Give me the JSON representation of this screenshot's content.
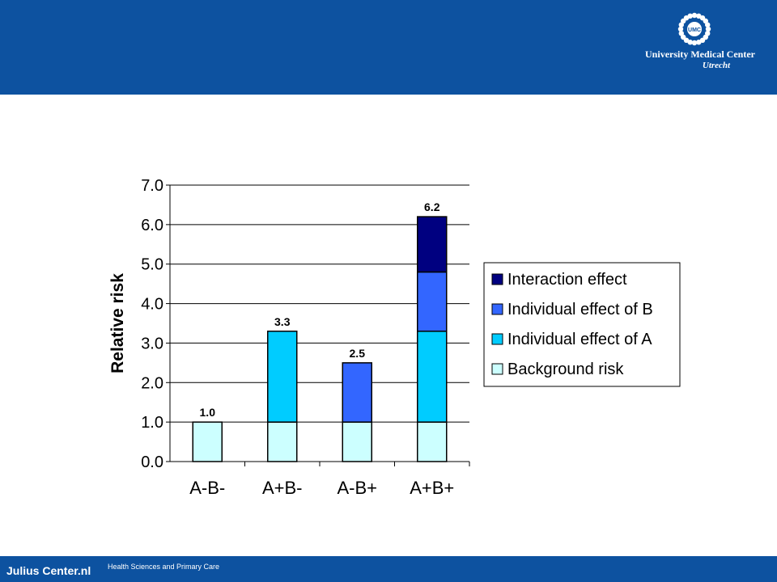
{
  "header": {
    "logo_line1": "University Medical Center",
    "logo_line2": "Utrecht",
    "logo_badge": "UMC"
  },
  "footer": {
    "brand": "Julius Center.nl",
    "subtitle": "Health Sciences and Primary Care"
  },
  "chart_data": {
    "type": "bar",
    "stacked": true,
    "categories": [
      "A-B-",
      "A+B-",
      "A-B+",
      "A+B+"
    ],
    "ylabel": "Relative risk",
    "ylim": [
      0,
      7
    ],
    "yticks": [
      "0.0",
      "1.0",
      "2.0",
      "3.0",
      "4.0",
      "5.0",
      "6.0",
      "7.0"
    ],
    "grid": true,
    "legend_position": "right",
    "series": [
      {
        "name": "Background risk",
        "color": "#ccffff",
        "values": [
          1.0,
          1.0,
          1.0,
          1.0
        ]
      },
      {
        "name": "Individual effect of A",
        "color": "#00ccff",
        "values": [
          0,
          2.3,
          0,
          2.3
        ]
      },
      {
        "name": "Individual effect of B",
        "color": "#3366ff",
        "values": [
          0,
          0,
          1.5,
          1.5
        ]
      },
      {
        "name": "Interaction effect",
        "color": "#000080",
        "values": [
          0,
          0,
          0,
          1.4
        ]
      }
    ],
    "totals": [
      "1.0",
      "3.3",
      "2.5",
      "6.2"
    ]
  }
}
